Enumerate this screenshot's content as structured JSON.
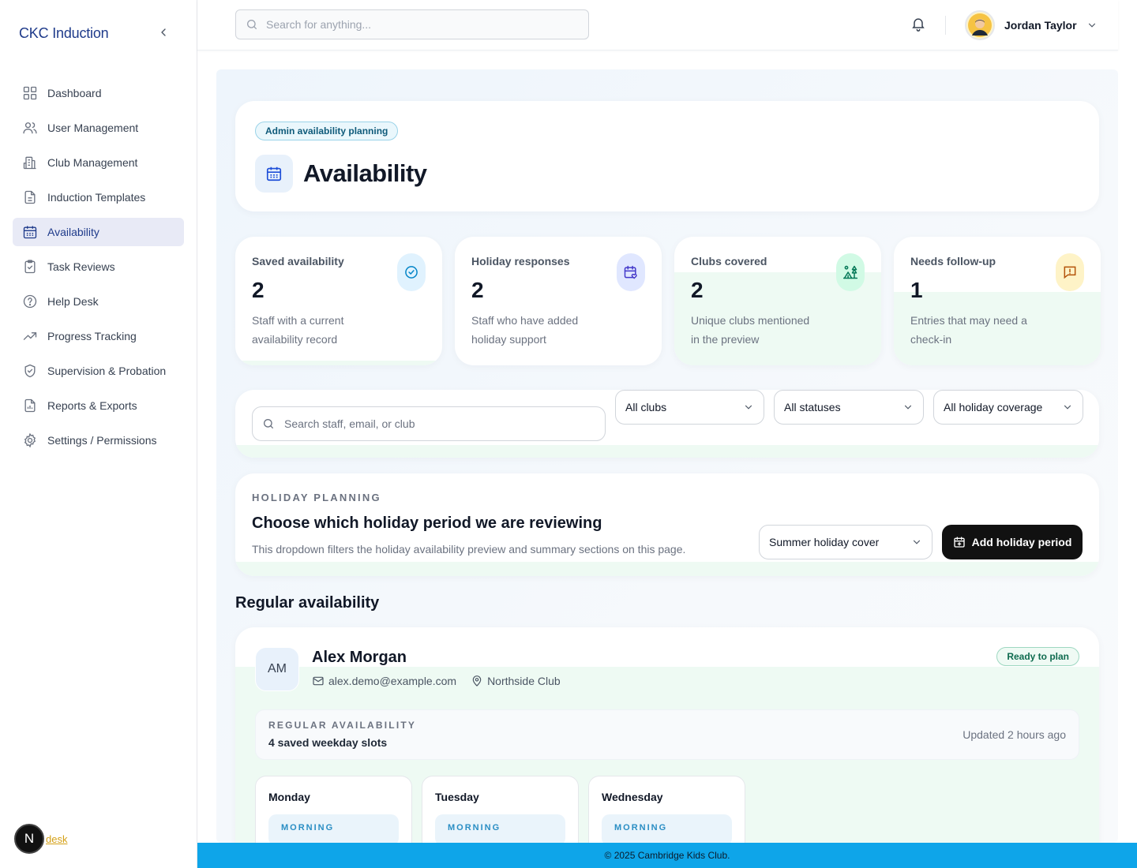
{
  "app": {
    "brand": "CKC Induction"
  },
  "sidebar": {
    "items": [
      {
        "label": "Dashboard",
        "icon": "dashboard-icon"
      },
      {
        "label": "User Management",
        "icon": "users-icon"
      },
      {
        "label": "Club Management",
        "icon": "building-icon"
      },
      {
        "label": "Induction Templates",
        "icon": "document-icon"
      },
      {
        "label": "Availability",
        "icon": "calendar-icon",
        "active": true
      },
      {
        "label": "Task Reviews",
        "icon": "clipboard-check-icon"
      },
      {
        "label": "Help Desk",
        "icon": "help-circle-icon"
      },
      {
        "label": "Progress Tracking",
        "icon": "trending-up-icon"
      },
      {
        "label": "Supervision & Probation",
        "icon": "shield-check-icon"
      },
      {
        "label": "Reports & Exports",
        "icon": "file-chart-icon"
      },
      {
        "label": "Settings / Permissions",
        "icon": "gear-icon"
      }
    ],
    "footer_badge": "N",
    "footer_link": "desk"
  },
  "header": {
    "search_placeholder": "Search for anything...",
    "user_name": "Jordan Taylor"
  },
  "hero": {
    "pill": "Admin availability planning",
    "title": "Availability"
  },
  "stats": [
    {
      "label": "Saved availability",
      "value": "2",
      "desc": "Staff with a current availability record",
      "icon": "check-circle-icon",
      "accent": "#0ea5e9"
    },
    {
      "label": "Holiday responses",
      "value": "2",
      "desc": "Staff who have added holiday support",
      "icon": "calendar-heart-icon",
      "accent": "#4f46e5"
    },
    {
      "label": "Clubs covered",
      "value": "2",
      "desc": "Unique clubs mentioned in the preview",
      "icon": "tent-tree-icon",
      "accent": "#047857"
    },
    {
      "label": "Needs follow-up",
      "value": "1",
      "desc": "Entries that may need a check-in",
      "icon": "message-alert-icon",
      "accent": "#b45309"
    }
  ],
  "filters": {
    "search_placeholder": "Search staff, email, or club",
    "clubs": "All clubs",
    "statuses": "All statuses",
    "holiday": "All holiday coverage"
  },
  "holiday": {
    "eyebrow": "HOLIDAY PLANNING",
    "title": "Choose which holiday period we are reviewing",
    "desc": "This dropdown filters the holiday availability preview and summary sections on this page.",
    "selected": "Summer holiday cover",
    "add_button": "Add holiday period"
  },
  "regular": {
    "section_title": "Regular availability",
    "person": {
      "initials": "AM",
      "name": "Alex Morgan",
      "email": "alex.demo@example.com",
      "club": "Northside Club",
      "status": "Ready to plan",
      "box_eyebrow": "REGULAR AVAILABILITY",
      "slot_count": "4 saved weekday slots",
      "updated": "Updated 2 hours ago",
      "days": [
        {
          "name": "Monday",
          "slot": "MORNING"
        },
        {
          "name": "Tuesday",
          "slot": "MORNING"
        },
        {
          "name": "Wednesday",
          "slot": "MORNING"
        }
      ]
    }
  },
  "footer": {
    "text": "© 2025 Cambridge Kids Club."
  }
}
